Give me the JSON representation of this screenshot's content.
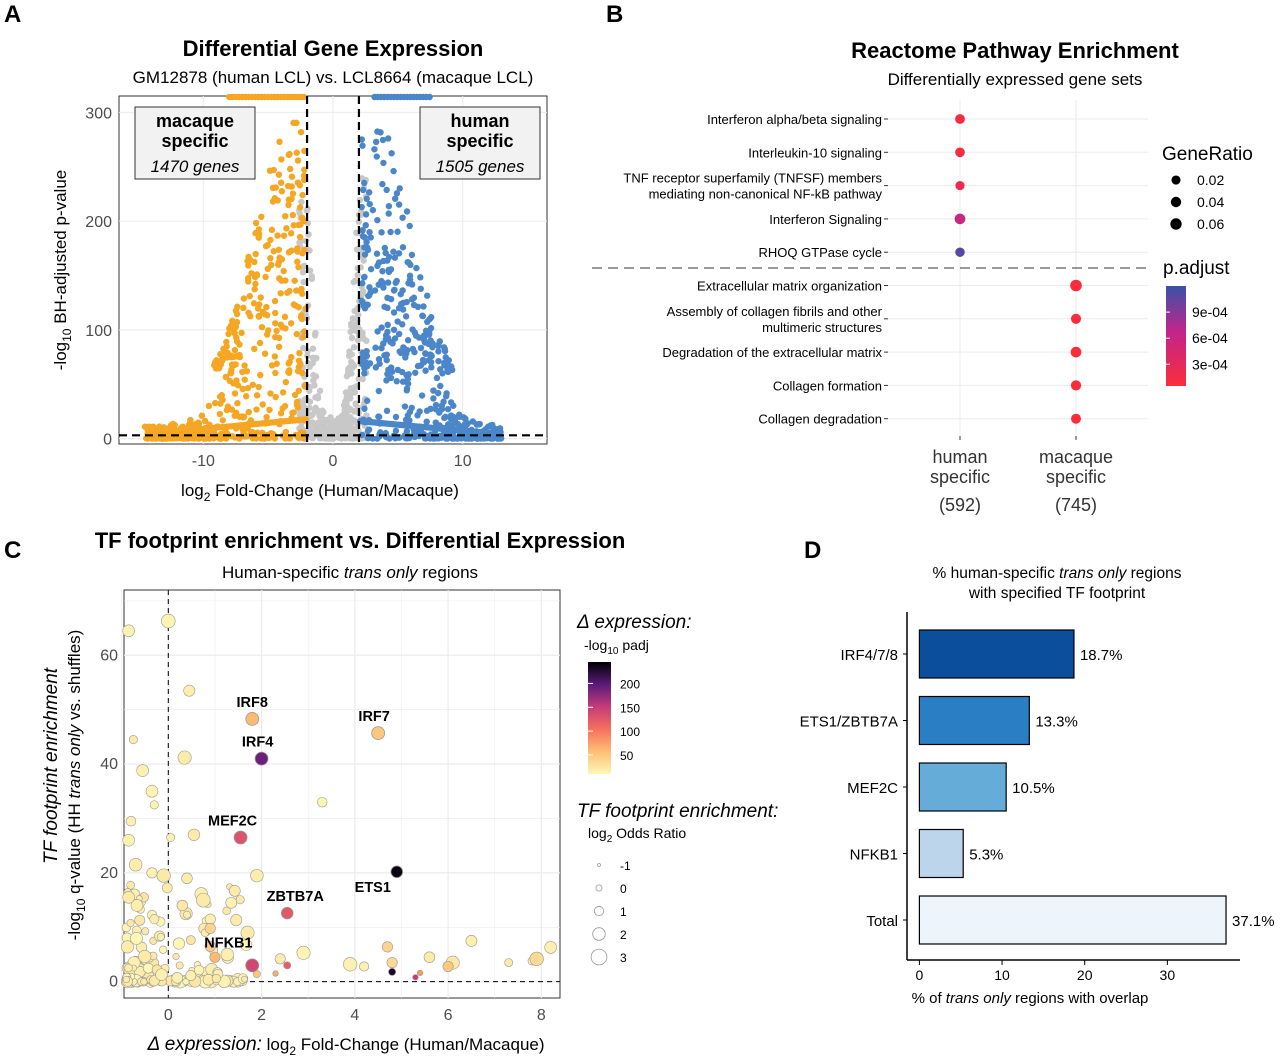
{
  "colors": {
    "macaque": "#f5a623",
    "human": "#4a86c8",
    "grey": "#c8c8c8",
    "threshold": "#000000",
    "grid": "#ebebeb"
  },
  "panels": {
    "a": {
      "letter": "A"
    },
    "b": {
      "letter": "B"
    },
    "c": {
      "letter": "C"
    },
    "d": {
      "letter": "D"
    }
  },
  "chart_data": [
    {
      "id": "A",
      "type": "scatter",
      "title": "Differential Gene Expression",
      "subtitle": "GM12878 (human LCL) vs. LCL8664 (macaque LCL)",
      "xlabel_prefix": "log",
      "xlabel_sub": "2",
      "xlabel_rest": " Fold-Change (Human/Macaque)",
      "ylabel_prefix": "-log",
      "ylabel_sub": "10",
      "ylabel_rest": " BH-adjusted p-value",
      "xlim": [
        -16.5,
        16.5
      ],
      "ylim": [
        -5,
        315
      ],
      "xticks": [
        -10,
        0,
        10
      ],
      "xtick_labels": [
        "-10",
        "0",
        "10"
      ],
      "yticks": [
        0,
        100,
        200,
        300
      ],
      "ytick_labels": [
        "0",
        "100",
        "200",
        "300"
      ],
      "thresholds": {
        "x": [
          -2,
          2
        ],
        "y": 3
      },
      "boxes": [
        {
          "name": "macaque",
          "line1": "macaque",
          "line2": "specific",
          "line3": "1470 genes"
        },
        {
          "name": "human",
          "line1": "human",
          "line2": "specific",
          "line3": "1505 genes"
        }
      ],
      "series": [
        {
          "name": "macaque specific",
          "count": 1470,
          "x_range": [
            -14.5,
            -2
          ],
          "y_max": 300
        },
        {
          "name": "human specific",
          "count": 1505,
          "x_range": [
            2,
            13
          ],
          "y_max": 275
        },
        {
          "name": "not significant",
          "x_range": [
            -2,
            2
          ],
          "y_max": 235
        }
      ]
    },
    {
      "id": "B",
      "type": "scatter",
      "title": "Reactome Pathway Enrichment",
      "subtitle": "Differentially expressed gene sets",
      "categories": [
        {
          "line1": "human",
          "line2": "specific",
          "count": "(592)"
        },
        {
          "line1": "macaque",
          "line2": "specific",
          "count": "(745)"
        }
      ],
      "pathways": [
        {
          "line1": "Interferon alpha/beta signaling",
          "line2": "",
          "group": 0,
          "gene_ratio": 0.03,
          "p_adjust": 0.0001
        },
        {
          "line1": "Interleukin-10 signaling",
          "line2": "",
          "group": 0,
          "gene_ratio": 0.028,
          "p_adjust": 0.0001
        },
        {
          "line1": "TNF receptor superfamily (TNFSF) members",
          "line2": "mediating non-canonical NF-kB pathway",
          "group": 0,
          "gene_ratio": 0.02,
          "p_adjust": 0.0002
        },
        {
          "line1": "Interferon Signaling",
          "line2": "",
          "group": 0,
          "gene_ratio": 0.045,
          "p_adjust": 0.0006
        },
        {
          "line1": "RHOQ GTPase cycle",
          "line2": "",
          "group": 0,
          "gene_ratio": 0.025,
          "p_adjust": 0.0011
        },
        {
          "line1": "Extracellular matrix organization",
          "line2": "",
          "group": 1,
          "gene_ratio": 0.065,
          "p_adjust": 5e-05
        },
        {
          "line1": "Assembly of collagen fibrils and other",
          "line2": "multimeric structures",
          "group": 1,
          "gene_ratio": 0.035,
          "p_adjust": 5e-05
        },
        {
          "line1": "Degradation of the extracellular matrix",
          "line2": "",
          "group": 1,
          "gene_ratio": 0.045,
          "p_adjust": 5e-05
        },
        {
          "line1": "Collagen formation",
          "line2": "",
          "group": 1,
          "gene_ratio": 0.037,
          "p_adjust": 5e-05
        },
        {
          "line1": "Collagen degradation",
          "line2": "",
          "group": 1,
          "gene_ratio": 0.033,
          "p_adjust": 5e-05
        }
      ],
      "legend_size": {
        "title": "GeneRatio",
        "values": [
          0.02,
          0.04,
          0.06
        ],
        "labels": [
          "0.02",
          "0.04",
          "0.06"
        ]
      },
      "legend_color": {
        "title": "p.adjust",
        "range": [
          5e-05,
          0.0012
        ],
        "ticks": [
          0.0009,
          0.0006,
          0.0003
        ],
        "labels": [
          "9e-04",
          "6e-04",
          "3e-04"
        ]
      }
    },
    {
      "id": "C",
      "type": "scatter",
      "title": "TF footprint enrichment vs. Differential Expression",
      "subtitle_pre": "Human-specific ",
      "subtitle_em": "trans only",
      "subtitle_post": " regions",
      "xlabel_em": "Δ expression:",
      "xlabel_mid": " log",
      "xlabel_sub": "2",
      "xlabel_rest": " Fold-Change (Human/Macaque)",
      "ylabel_line1": "TF footprint enrichment",
      "ylabel_pre": "-log",
      "ylabel_sub": "10",
      "ylabel_mid": " q-value (HH ",
      "ylabel_em": "trans only",
      "ylabel_post": " vs. shuffles)",
      "xlim": [
        -0.95,
        8.4
      ],
      "ylim": [
        -3,
        72
      ],
      "xticks": [
        0,
        2,
        4,
        6,
        8
      ],
      "xtick_labels": [
        "0",
        "2",
        "4",
        "6",
        "8"
      ],
      "yticks": [
        0,
        20,
        40,
        60
      ],
      "ytick_labels": [
        "0",
        "20",
        "40",
        "60"
      ],
      "labeled_points": [
        {
          "label": "IRF8",
          "x": 1.8,
          "y": 48.3,
          "padj": 60,
          "odds": 1.8
        },
        {
          "label": "IRF7",
          "x": 4.5,
          "y": 45.7,
          "padj": 50,
          "odds": 1.8
        },
        {
          "label": "IRF4",
          "x": 2.0,
          "y": 41.0,
          "padj": 190,
          "odds": 1.8
        },
        {
          "label": "MEF2C",
          "x": 1.55,
          "y": 26.5,
          "padj": 130,
          "odds": 1.8
        },
        {
          "label": "ETS1",
          "x": 4.9,
          "y": 20.2,
          "padj": 240,
          "odds": 1.4
        },
        {
          "label": "ZBTB7A",
          "x": 2.55,
          "y": 12.6,
          "padj": 125,
          "odds": 1.4
        },
        {
          "label": "NFKB1",
          "x": 1.8,
          "y": 3.0,
          "padj": 140,
          "odds": 1.8
        }
      ],
      "legend_color": {
        "title": "Δ expression:",
        "sub_pre": "-log",
        "sub_sub": "10",
        "sub_post": " padj",
        "range": [
          10,
          245
        ],
        "ticks": [
          200,
          150,
          100,
          50
        ],
        "labels": [
          "200",
          "150",
          "100",
          "50"
        ]
      },
      "legend_size": {
        "title": "TF footprint enrichment:",
        "sub_pre": "log",
        "sub_sub": "2",
        "sub_post": " Odds Ratio",
        "values": [
          -1,
          0,
          1,
          2,
          3
        ],
        "labels": [
          "-1",
          "0",
          "1",
          "2",
          "3"
        ]
      }
    },
    {
      "id": "D",
      "type": "bar",
      "title_pre": "% human-specific ",
      "title_em": "trans only",
      "title_post": " regions",
      "title_line2": "with specified TF footprint",
      "categories": [
        "IRF4/7/8",
        "ETS1/ZBTB7A",
        "MEF2C",
        "NFKB1",
        "Total"
      ],
      "values": [
        18.7,
        13.3,
        10.5,
        5.3,
        37.1
      ],
      "value_labels": [
        "18.7%",
        "13.3%",
        "10.5%",
        "5.3%",
        "37.1%"
      ],
      "bar_colors": [
        "#0b4f9c",
        "#2a7fc4",
        "#66acd8",
        "#bcd5ea",
        "#eef4fb"
      ],
      "xlim": [
        -1.5,
        40
      ],
      "xticks": [
        0,
        10,
        20,
        30
      ],
      "xtick_labels": [
        "0",
        "10",
        "20",
        "30"
      ],
      "xlabel_pre": "% of ",
      "xlabel_em": "trans only",
      "xlabel_post": " regions with overlap"
    }
  ]
}
